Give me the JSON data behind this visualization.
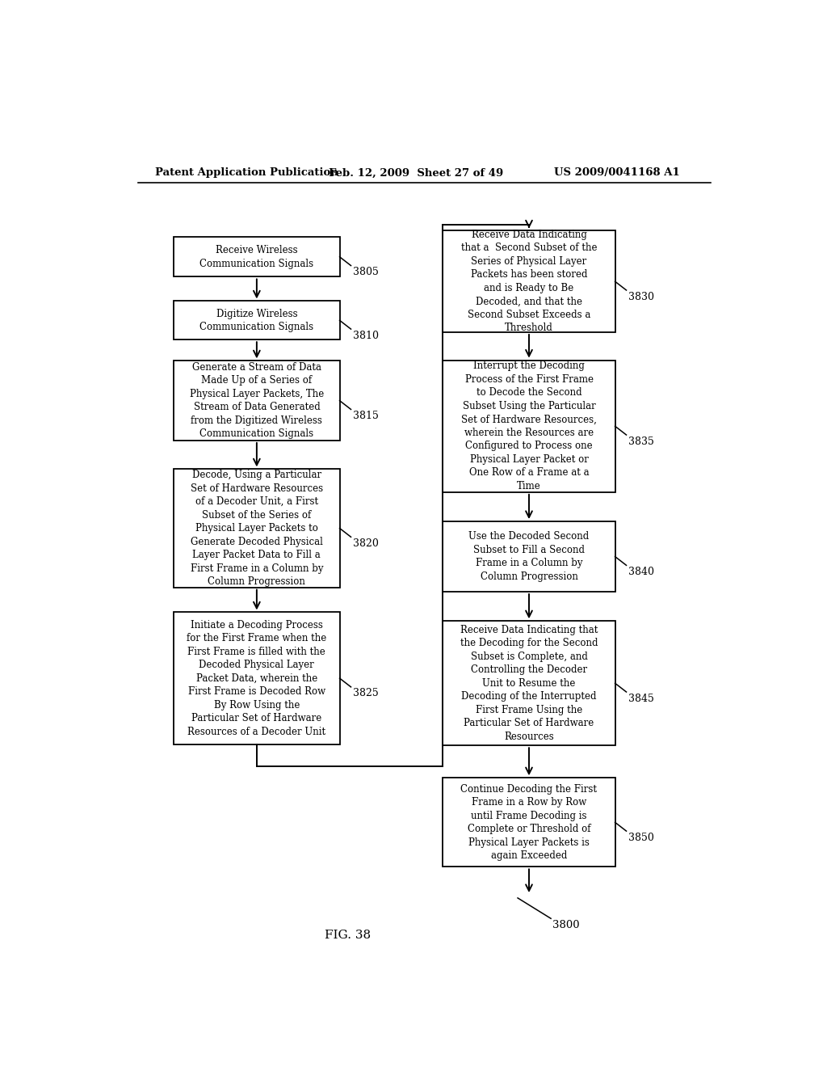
{
  "header_left": "Patent Application Publication",
  "header_mid": "Feb. 12, 2009  Sheet 27 of 49",
  "header_right": "US 2009/0041168 A1",
  "fig_label": "FIG. 38",
  "figure_number": "3800",
  "bg_color": "#ffffff",
  "left_boxes": [
    {
      "label": "Receive Wireless\nCommunication Signals",
      "tag": "3805"
    },
    {
      "label": "Digitize Wireless\nCommunication Signals",
      "tag": "3810"
    },
    {
      "label": "Generate a Stream of Data\nMade Up of a Series of\nPhysical Layer Packets, The\nStream of Data Generated\nfrom the Digitized Wireless\nCommunication Signals",
      "tag": "3815"
    },
    {
      "label": "Decode, Using a Particular\nSet of Hardware Resources\nof a Decoder Unit, a First\nSubset of the Series of\nPhysical Layer Packets to\nGenerate Decoded Physical\nLayer Packet Data to Fill a\nFirst Frame in a Column by\nColumn Progression",
      "tag": "3820"
    },
    {
      "label": "Initiate a Decoding Process\nfor the First Frame when the\nFirst Frame is filled with the\nDecoded Physical Layer\nPacket Data, wherein the\nFirst Frame is Decoded Row\nBy Row Using the\nParticular Set of Hardware\nResources of a Decoder Unit",
      "tag": "3825"
    }
  ],
  "right_boxes": [
    {
      "label": "Receive Data Indicating\nthat a  Second Subset of the\nSeries of Physical Layer\nPackets has been stored\nand is Ready to Be\nDecoded, and that the\nSecond Subset Exceeds a\nThreshold",
      "tag": "3830"
    },
    {
      "label": "Interrupt the Decoding\nProcess of the First Frame\nto Decode the Second\nSubset Using the Particular\nSet of Hardware Resources,\nwherein the Resources are\nConfigured to Process one\nPhysical Layer Packet or\nOne Row of a Frame at a\nTime",
      "tag": "3835"
    },
    {
      "label": "Use the Decoded Second\nSubset to Fill a Second\nFrame in a Column by\nColumn Progression",
      "tag": "3840"
    },
    {
      "label": "Receive Data Indicating that\nthe Decoding for the Second\nSubset is Complete, and\nControlling the Decoder\nUnit to Resume the\nDecoding of the Interrupted\nFirst Frame Using the\nParticular Set of Hardware\nResources",
      "tag": "3845"
    },
    {
      "label": "Continue Decoding the First\nFrame in a Row by Row\nuntil Frame Decoding is\nComplete or Threshold of\nPhysical Layer Packets is\nagain Exceeded",
      "tag": "3850"
    }
  ]
}
